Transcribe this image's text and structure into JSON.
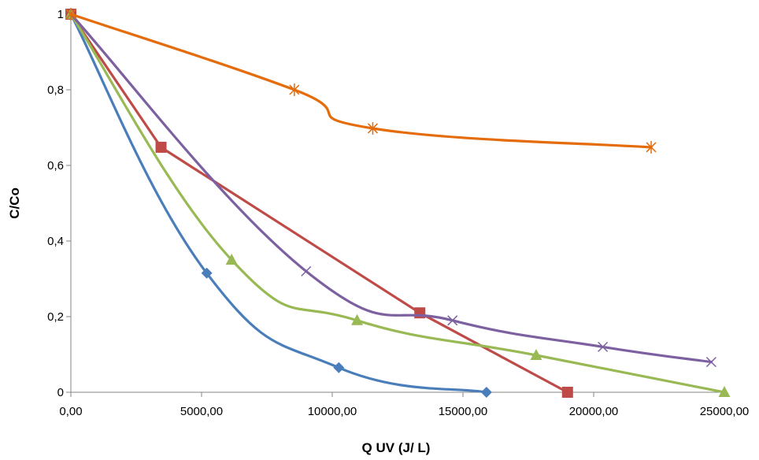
{
  "chart_data": {
    "type": "line",
    "title": "",
    "xlabel": "Q UV  (J/ L)",
    "ylabel": "C/Co",
    "xlim": [
      0,
      25000
    ],
    "ylim": [
      0,
      1
    ],
    "x_ticks": [
      0,
      5000,
      10000,
      15000,
      20000,
      25000
    ],
    "x_tick_labels": [
      "0,00",
      "5000,00",
      "10000,00",
      "15000,00",
      "20000,00",
      "25000,00"
    ],
    "y_ticks": [
      0,
      0.2,
      0.4,
      0.6,
      0.8,
      1
    ],
    "y_tick_labels": [
      "0",
      "0,2",
      "0,4",
      "0,6",
      "0,8",
      "1"
    ],
    "grid": false,
    "legend": "none",
    "series": [
      {
        "color": "#4a7ebb",
        "marker": "diamond",
        "smooth": true,
        "points": [
          [
            0,
            1
          ],
          [
            5200,
            0.315
          ],
          [
            10250,
            0.065
          ],
          [
            15900,
            0
          ]
        ]
      },
      {
        "color": "#be4b48",
        "marker": "square",
        "smooth": false,
        "points": [
          [
            0,
            1
          ],
          [
            3450,
            0.648
          ],
          [
            13350,
            0.21
          ],
          [
            19000,
            0
          ]
        ]
      },
      {
        "color": "#98b954",
        "marker": "triangle",
        "smooth": true,
        "points": [
          [
            0,
            1
          ],
          [
            6150,
            0.35
          ],
          [
            10950,
            0.19
          ],
          [
            17800,
            0.098
          ],
          [
            25000,
            0
          ]
        ]
      },
      {
        "color": "#7d60a0",
        "marker": "x",
        "smooth": true,
        "points": [
          [
            0,
            1
          ],
          [
            9000,
            0.32
          ],
          [
            14600,
            0.19
          ],
          [
            20350,
            0.12
          ],
          [
            24500,
            0.08
          ]
        ]
      },
      {
        "color": "#e46c0a",
        "marker": "star",
        "smooth": true,
        "points": [
          [
            0,
            1
          ],
          [
            8550,
            0.8
          ],
          [
            11550,
            0.698
          ],
          [
            22200,
            0.648
          ]
        ]
      }
    ]
  }
}
